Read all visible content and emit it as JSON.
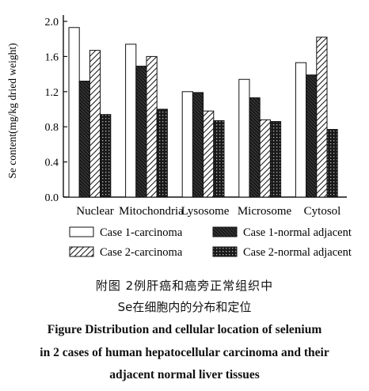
{
  "chart_data": {
    "type": "bar",
    "ylabel": "Se content(mg/kg dried weight)",
    "xlabel": "",
    "ylim": [
      0,
      2.0
    ],
    "yticks": [
      "0.0",
      "0.4",
      "0.8",
      "1.2",
      "1.6",
      "2.0"
    ],
    "categories": [
      "Nuclear",
      "Mitochondria",
      "Lysosome",
      "Microsome",
      "Cytosol"
    ],
    "series": [
      {
        "name": "Case 1-carcinoma",
        "pattern": "white",
        "values": [
          1.93,
          1.74,
          1.2,
          1.34,
          1.53
        ]
      },
      {
        "name": "Case 1-normal adjacent",
        "pattern": "dense-hatch",
        "values": [
          1.32,
          1.49,
          1.19,
          1.13,
          1.39
        ]
      },
      {
        "name": "Case 2-carcinoma",
        "pattern": "diagonal-hatch",
        "values": [
          1.67,
          1.6,
          0.98,
          0.88,
          1.82
        ]
      },
      {
        "name": "Case 2-normal adjacent",
        "pattern": "crosshatch",
        "values": [
          0.94,
          1.0,
          0.87,
          0.86,
          0.77
        ]
      }
    ],
    "legend_placement": "bottom",
    "grid": false
  },
  "caption": {
    "cn_line1": "附图 2例肝癌和癌旁正常组织中",
    "cn_line2": "Se在细胞内的分布和定位",
    "en_line1": "Figure Distribution and cellular location of selenium",
    "en_line2": "in 2 cases of human hepatocellular carcinoma and their",
    "en_line3": "adjacent normal liver tissues"
  }
}
